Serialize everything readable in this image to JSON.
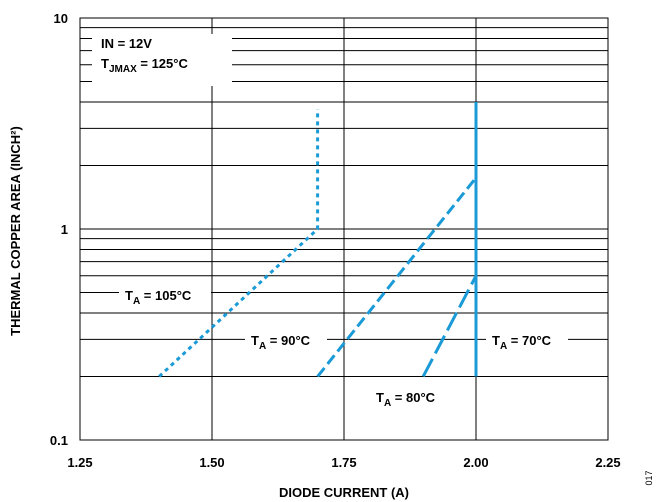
{
  "chart_data": {
    "type": "line",
    "xlabel": "DIODE CURRENT (A)",
    "ylabel": "THERMAL COPPER AREA (INCH²)",
    "xlim": [
      1.25,
      2.25
    ],
    "ylim": [
      0.1,
      10
    ],
    "yscale": "log",
    "x_ticks": [
      "1.25",
      "1.50",
      "1.75",
      "2.00",
      "2.25"
    ],
    "y_ticks": [
      "0.1",
      "1",
      "10"
    ],
    "grid": true,
    "conditions": {
      "line1": "IN = 12V",
      "line2_main": "T",
      "line2_sub": "JMAX",
      "line2_rest": " = 125°C"
    },
    "series": [
      {
        "name": "TA = 105°C",
        "label_main": "T",
        "label_sub": "A",
        "label_rest": " = 105°C",
        "style": "dotted",
        "x": [
          1.4,
          1.7,
          1.7
        ],
        "y": [
          0.2,
          1.0,
          3.7
        ]
      },
      {
        "name": "TA = 90°C",
        "label_main": "T",
        "label_sub": "A",
        "label_rest": " = 90°C",
        "style": "dashed",
        "x": [
          1.7,
          2.0
        ],
        "y": [
          0.2,
          1.75
        ]
      },
      {
        "name": "TA = 80°C",
        "label_main": "T",
        "label_sub": "A",
        "label_rest": " = 80°C",
        "style": "longdash",
        "x": [
          1.9,
          2.0
        ],
        "y": [
          0.2,
          0.6
        ]
      },
      {
        "name": "TA = 70°C",
        "label_main": "T",
        "label_sub": "A",
        "label_rest": " = 70°C",
        "style": "solid",
        "x": [
          2.0,
          2.0
        ],
        "y": [
          0.2,
          4.0
        ]
      }
    ],
    "line_color": "#1a9ad6",
    "figure_id": "017"
  }
}
